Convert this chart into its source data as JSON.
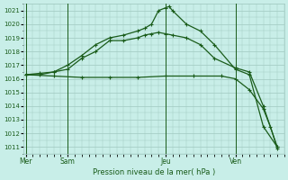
{
  "background_color": "#c8eee8",
  "grid_color": "#a0c8c0",
  "line_color": "#1a5c1a",
  "xlabel": "Pression niveau de la mer( hPa )",
  "ylim": [
    1010.5,
    1021.5
  ],
  "yticks": [
    1011,
    1012,
    1013,
    1014,
    1015,
    1016,
    1017,
    1018,
    1019,
    1020,
    1021
  ],
  "day_labels": [
    "Mer",
    "Sam",
    "Jeu",
    "Ven"
  ],
  "day_positions": [
    0,
    6,
    20,
    30
  ],
  "vline_positions": [
    0,
    6,
    20,
    30
  ],
  "xlim": [
    -0.3,
    37
  ],
  "series1_x": [
    0,
    2,
    4,
    6,
    8,
    10,
    12,
    14,
    16,
    17,
    18,
    19,
    20,
    20.5,
    21,
    23,
    25,
    27,
    30,
    32,
    34,
    36
  ],
  "series1_y": [
    1016.3,
    1016.4,
    1016.5,
    1017.0,
    1017.7,
    1018.5,
    1019.0,
    1019.2,
    1019.5,
    1019.7,
    1020.0,
    1021.0,
    1021.2,
    1021.3,
    1021.0,
    1020.0,
    1019.5,
    1018.5,
    1016.7,
    1016.3,
    1012.5,
    1011.0
  ],
  "series2_x": [
    0,
    2,
    4,
    6,
    8,
    10,
    12,
    14,
    16,
    17,
    18,
    19,
    20,
    21,
    23,
    25,
    27,
    30,
    32,
    34,
    36
  ],
  "series2_y": [
    1016.3,
    1016.3,
    1016.5,
    1016.7,
    1017.5,
    1018.0,
    1018.8,
    1018.8,
    1019.0,
    1019.2,
    1019.3,
    1019.4,
    1019.3,
    1019.2,
    1019.0,
    1018.5,
    1017.5,
    1016.8,
    1016.5,
    1014.0,
    1011.0
  ],
  "series3_x": [
    0,
    4,
    8,
    12,
    16,
    20,
    24,
    28,
    30,
    32,
    34,
    35,
    36
  ],
  "series3_y": [
    1016.3,
    1016.2,
    1016.1,
    1016.1,
    1016.1,
    1016.2,
    1016.2,
    1016.2,
    1016.0,
    1015.2,
    1013.8,
    1012.5,
    1010.9
  ]
}
